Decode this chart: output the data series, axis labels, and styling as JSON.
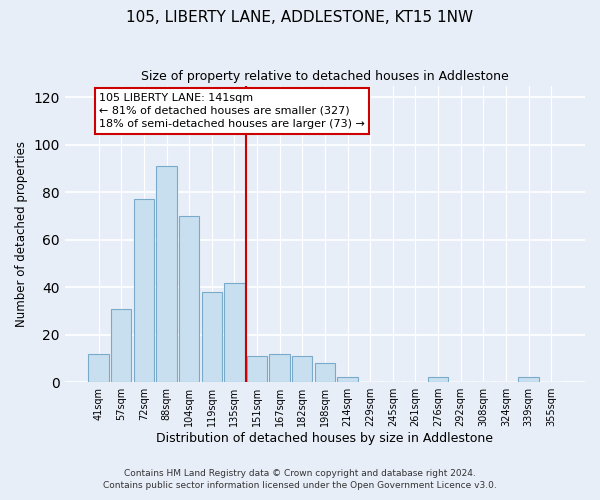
{
  "title": "105, LIBERTY LANE, ADDLESTONE, KT15 1NW",
  "subtitle": "Size of property relative to detached houses in Addlestone",
  "xlabel": "Distribution of detached houses by size in Addlestone",
  "ylabel": "Number of detached properties",
  "bar_labels": [
    "41sqm",
    "57sqm",
    "72sqm",
    "88sqm",
    "104sqm",
    "119sqm",
    "135sqm",
    "151sqm",
    "167sqm",
    "182sqm",
    "198sqm",
    "214sqm",
    "229sqm",
    "245sqm",
    "261sqm",
    "276sqm",
    "292sqm",
    "308sqm",
    "324sqm",
    "339sqm",
    "355sqm"
  ],
  "bar_values": [
    12,
    31,
    77,
    91,
    70,
    38,
    42,
    11,
    12,
    11,
    8,
    2,
    0,
    0,
    0,
    2,
    0,
    0,
    0,
    2,
    0
  ],
  "bar_color": "#c8dff0",
  "bar_edge_color": "#7aaaca",
  "vline_x": 6.5,
  "vline_color": "#cc0000",
  "annotation_title": "105 LIBERTY LANE: 141sqm",
  "annotation_line1": "← 81% of detached houses are smaller (327)",
  "annotation_line2": "18% of semi-detached houses are larger (73) →",
  "box_edge_color": "#cc0000",
  "ylim": [
    0,
    125
  ],
  "yticks": [
    0,
    20,
    40,
    60,
    80,
    100,
    120
  ],
  "footnote1": "Contains HM Land Registry data © Crown copyright and database right 2024.",
  "footnote2": "Contains public sector information licensed under the Open Government Licence v3.0.",
  "bg_color": "#e8eef8"
}
